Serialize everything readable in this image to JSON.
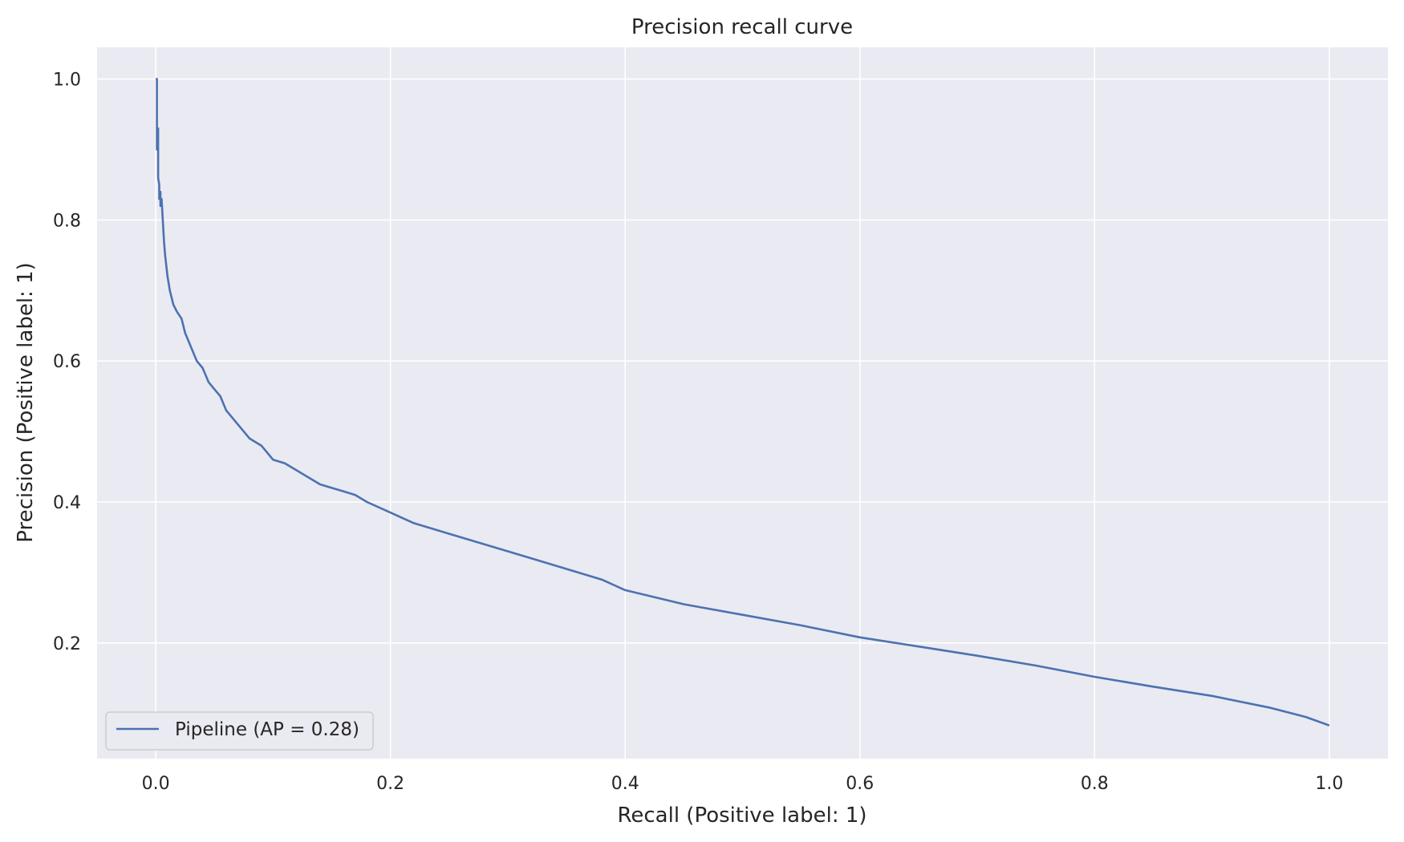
{
  "chart_data": {
    "type": "line",
    "title": "Precision recall curve",
    "xlabel": "Recall (Positive label: 1)",
    "ylabel": "Precision (Positive label: 1)",
    "xlim": [
      -0.05,
      1.05
    ],
    "ylim": [
      0.036,
      1.045
    ],
    "xticks": [
      0.0,
      0.2,
      0.4,
      0.6,
      0.8,
      1.0
    ],
    "xtick_labels": [
      "0.0",
      "0.2",
      "0.4",
      "0.6",
      "0.8",
      "1.0"
    ],
    "yticks": [
      0.2,
      0.4,
      0.6,
      0.8,
      1.0
    ],
    "ytick_labels": [
      "0.2",
      "0.4",
      "0.6",
      "0.8",
      "1.0"
    ],
    "grid": true,
    "background": "#eaeaf2",
    "grid_color": "#ffffff",
    "legend": {
      "position": "lower-left"
    },
    "series": [
      {
        "name": "Pipeline (AP = 0.28)",
        "color": "#4c72b0",
        "x": [
          0.0,
          0.001,
          0.001,
          0.002,
          0.002,
          0.003,
          0.003,
          0.004,
          0.004,
          0.005,
          0.006,
          0.007,
          0.008,
          0.01,
          0.012,
          0.015,
          0.018,
          0.022,
          0.025,
          0.03,
          0.035,
          0.04,
          0.045,
          0.05,
          0.055,
          0.06,
          0.07,
          0.08,
          0.09,
          0.1,
          0.11,
          0.12,
          0.13,
          0.14,
          0.15,
          0.16,
          0.17,
          0.18,
          0.2,
          0.22,
          0.25,
          0.28,
          0.3,
          0.32,
          0.35,
          0.38,
          0.4,
          0.45,
          0.5,
          0.55,
          0.6,
          0.65,
          0.7,
          0.75,
          0.8,
          0.85,
          0.9,
          0.95,
          0.98,
          1.0
        ],
        "y": [
          1.0,
          1.0,
          0.9,
          0.93,
          0.86,
          0.85,
          0.83,
          0.84,
          0.82,
          0.83,
          0.8,
          0.77,
          0.75,
          0.72,
          0.7,
          0.68,
          0.67,
          0.66,
          0.64,
          0.62,
          0.6,
          0.59,
          0.57,
          0.56,
          0.55,
          0.53,
          0.51,
          0.49,
          0.48,
          0.46,
          0.455,
          0.445,
          0.435,
          0.425,
          0.42,
          0.415,
          0.41,
          0.4,
          0.385,
          0.37,
          0.355,
          0.34,
          0.33,
          0.32,
          0.305,
          0.29,
          0.275,
          0.255,
          0.24,
          0.225,
          0.208,
          0.195,
          0.182,
          0.168,
          0.152,
          0.138,
          0.125,
          0.108,
          0.095,
          0.083
        ]
      }
    ]
  }
}
